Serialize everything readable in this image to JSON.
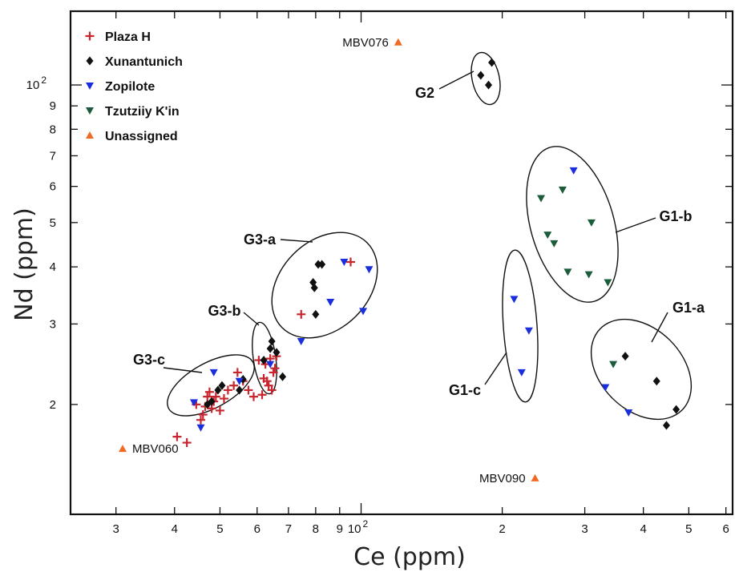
{
  "chart_data": {
    "type": "scatter",
    "xlabel": "Ce (ppm)",
    "ylabel": "Nd (ppm)",
    "x_scale": "log",
    "y_scale": "log",
    "xlim": [
      24,
      620
    ],
    "ylim": [
      11.5,
      145
    ],
    "grid": false,
    "legend_position": "top-left",
    "x_ticks": [
      {
        "value": 30,
        "label": "3"
      },
      {
        "value": 40,
        "label": "4"
      },
      {
        "value": 50,
        "label": "5"
      },
      {
        "value": 60,
        "label": "6"
      },
      {
        "value": 70,
        "label": "7"
      },
      {
        "value": 80,
        "label": "8"
      },
      {
        "value": 90,
        "label": "9"
      },
      {
        "value": 100,
        "label": "10 2"
      },
      {
        "value": 200,
        "label": "2"
      },
      {
        "value": 300,
        "label": "3"
      },
      {
        "value": 400,
        "label": "4"
      },
      {
        "value": 500,
        "label": "5"
      },
      {
        "value": 600,
        "label": "6"
      }
    ],
    "y_ticks": [
      {
        "value": 20,
        "label": "2"
      },
      {
        "value": 30,
        "label": "3"
      },
      {
        "value": 40,
        "label": "4"
      },
      {
        "value": 50,
        "label": "5"
      },
      {
        "value": 60,
        "label": "6"
      },
      {
        "value": 70,
        "label": "7"
      },
      {
        "value": 80,
        "label": "8"
      },
      {
        "value": 90,
        "label": "9"
      },
      {
        "value": 100,
        "label": "10 2"
      }
    ],
    "series": [
      {
        "name": "Plaza H",
        "marker": "plus",
        "color": "#c8262f",
        "points": [
          [
            40.5,
            17.0
          ],
          [
            42.5,
            16.5
          ],
          [
            44.5,
            20.0
          ],
          [
            45.5,
            18.5
          ],
          [
            46.0,
            19.0
          ],
          [
            46.5,
            19.8
          ],
          [
            47.0,
            20.8
          ],
          [
            47.5,
            21.3
          ],
          [
            48.0,
            19.6
          ],
          [
            48.5,
            20.3
          ],
          [
            49.0,
            20.8
          ],
          [
            50.0,
            19.4
          ],
          [
            51.0,
            20.6
          ],
          [
            52.0,
            21.5
          ],
          [
            53.5,
            22.0
          ],
          [
            54.5,
            23.5
          ],
          [
            56.0,
            22.5
          ],
          [
            57.5,
            21.5
          ],
          [
            59.0,
            20.8
          ],
          [
            60.5,
            25.0
          ],
          [
            61.5,
            21.0
          ],
          [
            62.0,
            22.8
          ],
          [
            62.5,
            24.5
          ],
          [
            63.0,
            22.5
          ],
          [
            63.5,
            22.0
          ],
          [
            64.0,
            25.2
          ],
          [
            64.5,
            21.5
          ],
          [
            65.0,
            23.5
          ],
          [
            65.5,
            24.0
          ],
          [
            66.0,
            25.5
          ],
          [
            74.5,
            31.5
          ],
          [
            95.0,
            41.0
          ]
        ]
      },
      {
        "name": "Xunantunich",
        "marker": "diamond",
        "color": "#111111",
        "points": [
          [
            47.0,
            20.0
          ],
          [
            48.0,
            20.3
          ],
          [
            49.5,
            21.5
          ],
          [
            50.5,
            22.0
          ],
          [
            55.0,
            21.5
          ],
          [
            56.0,
            22.7
          ],
          [
            62.0,
            25.0
          ],
          [
            64.0,
            26.5
          ],
          [
            64.5,
            27.5
          ],
          [
            66.0,
            26.0
          ],
          [
            68.0,
            23.0
          ],
          [
            79.0,
            37.0
          ],
          [
            79.5,
            36.0
          ],
          [
            80.0,
            31.5
          ],
          [
            81.0,
            40.5
          ],
          [
            82.5,
            40.5
          ],
          [
            180.0,
            105.0
          ],
          [
            187.0,
            100.0
          ],
          [
            190.0,
            112.0
          ],
          [
            366.0,
            25.5
          ],
          [
            427.0,
            22.5
          ],
          [
            448.0,
            18.0
          ],
          [
            470.0,
            19.5
          ]
        ]
      },
      {
        "name": "Zopilote",
        "marker": "triangle-down",
        "color": "#1a2fdc",
        "points": [
          [
            44.0,
            20.2
          ],
          [
            45.5,
            17.8
          ],
          [
            48.5,
            23.5
          ],
          [
            55.0,
            22.5
          ],
          [
            64.0,
            24.5
          ],
          [
            74.5,
            27.5
          ],
          [
            86.0,
            33.5
          ],
          [
            92.0,
            41.0
          ],
          [
            101.0,
            32.0
          ],
          [
            104.0,
            39.5
          ],
          [
            212.0,
            34.0
          ],
          [
            220.0,
            23.5
          ],
          [
            228.0,
            29.0
          ],
          [
            284.0,
            65.0
          ],
          [
            332.0,
            21.8
          ],
          [
            372.0,
            19.2
          ]
        ]
      },
      {
        "name": "Tzutziiy K'in",
        "marker": "triangle-down",
        "color": "#1b5c3a",
        "points": [
          [
            242.0,
            56.5
          ],
          [
            250.0,
            47.0
          ],
          [
            258.0,
            45.0
          ],
          [
            269.0,
            59.0
          ],
          [
            276.0,
            39.0
          ],
          [
            306.0,
            38.5
          ],
          [
            310.0,
            50.0
          ],
          [
            336.0,
            37.0
          ],
          [
            345.0,
            24.5
          ]
        ]
      },
      {
        "name": "Unassigned",
        "marker": "triangle-up",
        "color": "#f26a21",
        "points": [
          [
            31.0,
            16.0
          ],
          [
            120.0,
            124.0
          ],
          [
            235.0,
            13.8
          ]
        ]
      }
    ],
    "annotations": {
      "samples": [
        {
          "id": "MBV076",
          "x": 120.0,
          "y": 124.0
        },
        {
          "id": "MBV060",
          "x": 31.0,
          "y": 16.0
        },
        {
          "id": "MBV090",
          "x": 235.0,
          "y": 13.8
        }
      ],
      "groups": [
        "G2",
        "G1-b",
        "G1-a",
        "G1-c",
        "G3-a",
        "G3-b",
        "G3-c"
      ]
    }
  }
}
